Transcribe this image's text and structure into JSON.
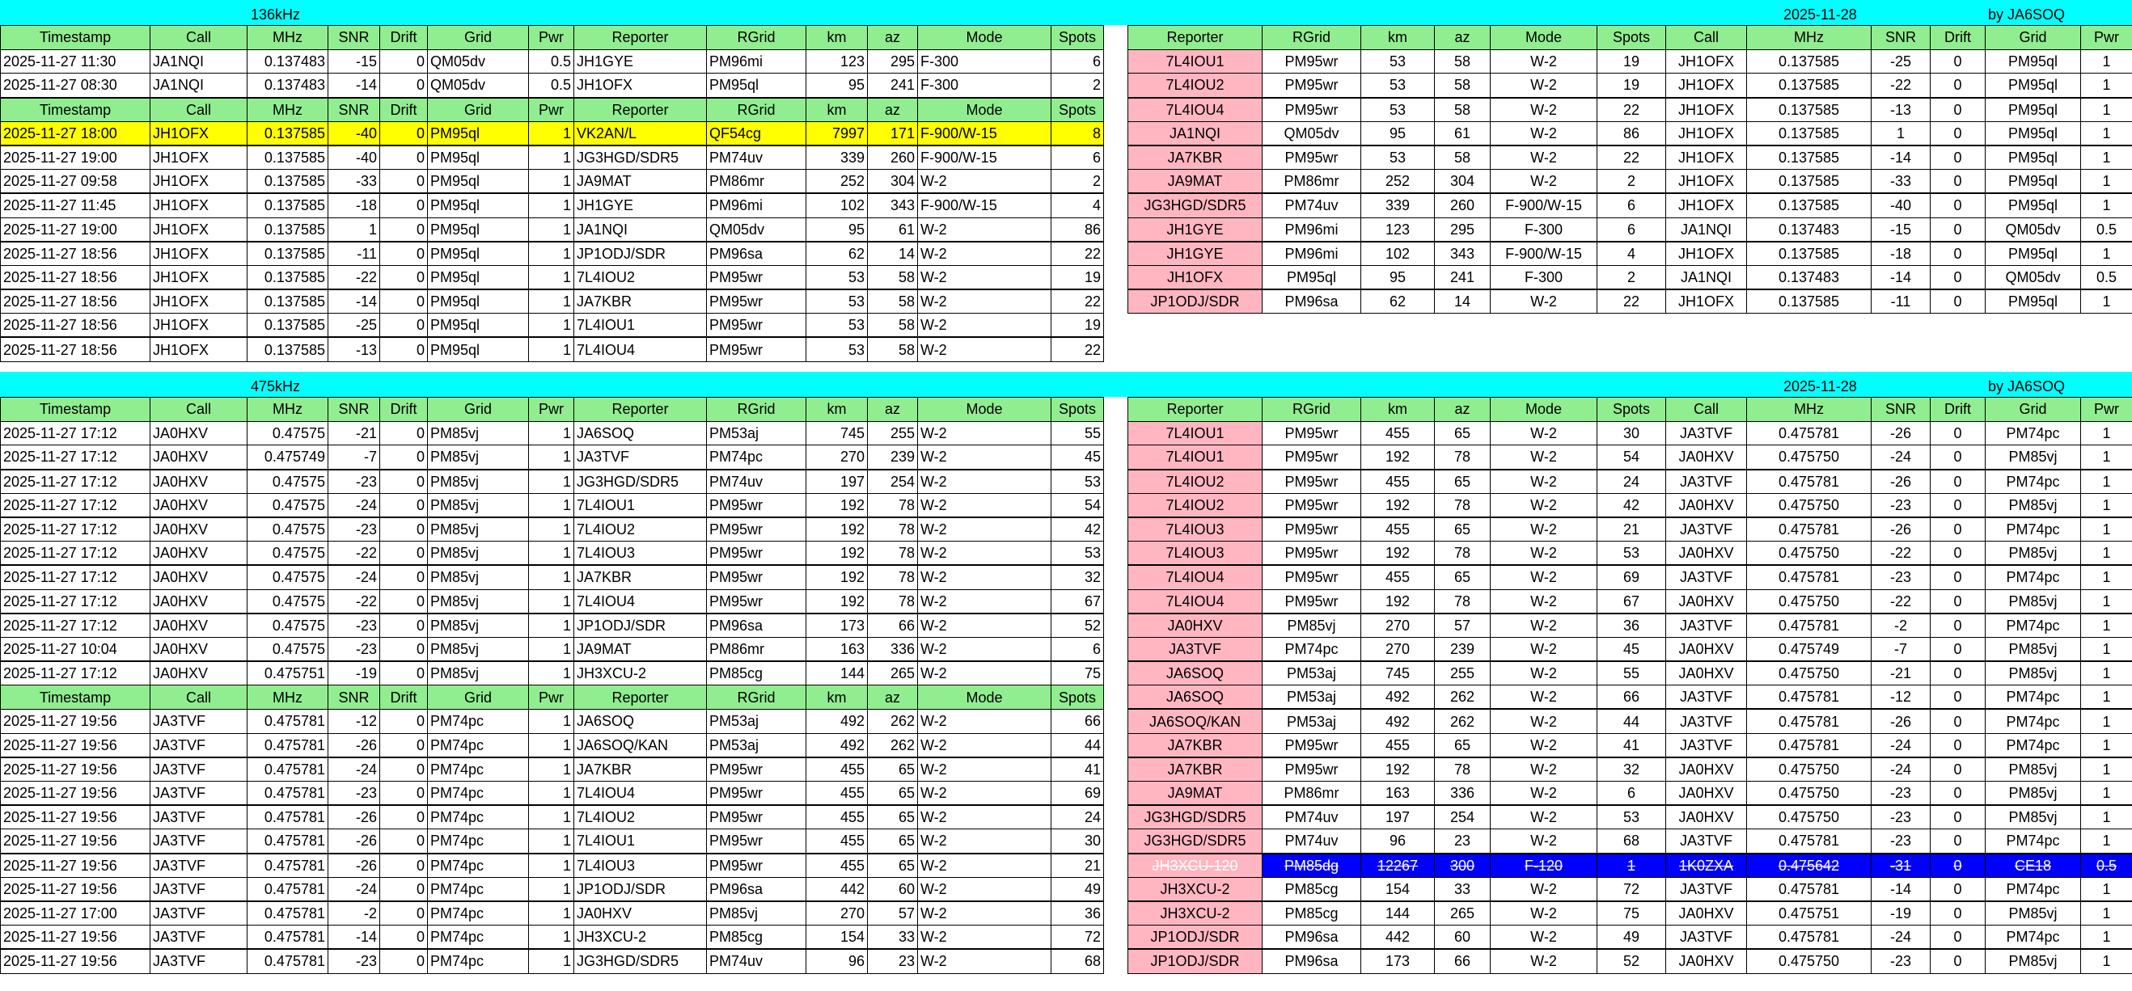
{
  "colors": {
    "band": "#00ffff",
    "header": "#90ee90",
    "reporter_cell": "#ffb6c1",
    "highlight_row": "#ffff00",
    "struck_row": "#0000ff"
  },
  "left": {
    "headers": [
      "Timestamp",
      "Call",
      "MHz",
      "SNR",
      "Drift",
      "Grid",
      "Pwr",
      "Reporter",
      "RGrid",
      "km",
      "az",
      "Mode",
      "Spots"
    ],
    "band_136": {
      "label": "136kHz"
    },
    "band_475": {
      "label": "475kHz"
    },
    "top_groups": [
      {
        "rows": [
          [
            "2025-11-27 11:30",
            "JA1NQI",
            "0.137483",
            "-15",
            "0",
            "QM05dv",
            "0.5",
            "JH1GYE",
            "PM96mi",
            "123",
            "295",
            "F-300",
            "6"
          ],
          [
            "2025-11-27 08:30",
            "JA1NQI",
            "0.137483",
            "-14",
            "0",
            "QM05dv",
            "0.5",
            "JH1OFX",
            "PM95ql",
            "95",
            "241",
            "F-300",
            "2"
          ]
        ]
      },
      {
        "highlight_first_row": true,
        "rows": [
          [
            "2025-11-27 18:00",
            "JH1OFX",
            "0.137585",
            "-40",
            "0",
            "PM95ql",
            "1",
            "VK2AN/L",
            "QF54cg",
            "7997",
            "171",
            "F-900/W-15",
            "8"
          ],
          [
            "2025-11-27 19:00",
            "JH1OFX",
            "0.137585",
            "-40",
            "0",
            "PM95ql",
            "1",
            "JG3HGD/SDR5",
            "PM74uv",
            "339",
            "260",
            "F-900/W-15",
            "6"
          ],
          [
            "2025-11-27 09:58",
            "JH1OFX",
            "0.137585",
            "-33",
            "0",
            "PM95ql",
            "1",
            "JA9MAT",
            "PM86mr",
            "252",
            "304",
            "W-2",
            "2"
          ],
          [
            "2025-11-27 11:45",
            "JH1OFX",
            "0.137585",
            "-18",
            "0",
            "PM95ql",
            "1",
            "JH1GYE",
            "PM96mi",
            "102",
            "343",
            "F-900/W-15",
            "4"
          ],
          [
            "2025-11-27 19:00",
            "JH1OFX",
            "0.137585",
            "1",
            "0",
            "PM95ql",
            "1",
            "JA1NQI",
            "QM05dv",
            "95",
            "61",
            "W-2",
            "86"
          ],
          [
            "2025-11-27 18:56",
            "JH1OFX",
            "0.137585",
            "-11",
            "0",
            "PM95ql",
            "1",
            "JP1ODJ/SDR",
            "PM96sa",
            "62",
            "14",
            "W-2",
            "22"
          ],
          [
            "2025-11-27 18:56",
            "JH1OFX",
            "0.137585",
            "-22",
            "0",
            "PM95ql",
            "1",
            "7L4IOU2",
            "PM95wr",
            "53",
            "58",
            "W-2",
            "19"
          ],
          [
            "2025-11-27 18:56",
            "JH1OFX",
            "0.137585",
            "-14",
            "0",
            "PM95ql",
            "1",
            "JA7KBR",
            "PM95wr",
            "53",
            "58",
            "W-2",
            "22"
          ],
          [
            "2025-11-27 18:56",
            "JH1OFX",
            "0.137585",
            "-25",
            "0",
            "PM95ql",
            "1",
            "7L4IOU1",
            "PM95wr",
            "53",
            "58",
            "W-2",
            "19"
          ],
          [
            "2025-11-27 18:56",
            "JH1OFX",
            "0.137585",
            "-13",
            "0",
            "PM95ql",
            "1",
            "7L4IOU4",
            "PM95wr",
            "53",
            "58",
            "W-2",
            "22"
          ]
        ]
      }
    ],
    "bottom_groups": [
      {
        "rows": [
          [
            "2025-11-27 17:12",
            "JA0HXV",
            "0.47575",
            "-21",
            "0",
            "PM85vj",
            "1",
            "JA6SOQ",
            "PM53aj",
            "745",
            "255",
            "W-2",
            "55"
          ],
          [
            "2025-11-27 17:12",
            "JA0HXV",
            "0.475749",
            "-7",
            "0",
            "PM85vj",
            "1",
            "JA3TVF",
            "PM74pc",
            "270",
            "239",
            "W-2",
            "45"
          ],
          [
            "2025-11-27 17:12",
            "JA0HXV",
            "0.47575",
            "-23",
            "0",
            "PM85vj",
            "1",
            "JG3HGD/SDR5",
            "PM74uv",
            "197",
            "254",
            "W-2",
            "53"
          ],
          [
            "2025-11-27 17:12",
            "JA0HXV",
            "0.47575",
            "-24",
            "0",
            "PM85vj",
            "1",
            "7L4IOU1",
            "PM95wr",
            "192",
            "78",
            "W-2",
            "54"
          ],
          [
            "2025-11-27 17:12",
            "JA0HXV",
            "0.47575",
            "-23",
            "0",
            "PM85vj",
            "1",
            "7L4IOU2",
            "PM95wr",
            "192",
            "78",
            "W-2",
            "42"
          ],
          [
            "2025-11-27 17:12",
            "JA0HXV",
            "0.47575",
            "-22",
            "0",
            "PM85vj",
            "1",
            "7L4IOU3",
            "PM95wr",
            "192",
            "78",
            "W-2",
            "53"
          ],
          [
            "2025-11-27 17:12",
            "JA0HXV",
            "0.47575",
            "-24",
            "0",
            "PM85vj",
            "1",
            "JA7KBR",
            "PM95wr",
            "192",
            "78",
            "W-2",
            "32"
          ],
          [
            "2025-11-27 17:12",
            "JA0HXV",
            "0.47575",
            "-22",
            "0",
            "PM85vj",
            "1",
            "7L4IOU4",
            "PM95wr",
            "192",
            "78",
            "W-2",
            "67"
          ],
          [
            "2025-11-27 17:12",
            "JA0HXV",
            "0.47575",
            "-23",
            "0",
            "PM85vj",
            "1",
            "JP1ODJ/SDR",
            "PM96sa",
            "173",
            "66",
            "W-2",
            "52"
          ],
          [
            "2025-11-27 10:04",
            "JA0HXV",
            "0.47575",
            "-23",
            "0",
            "PM85vj",
            "1",
            "JA9MAT",
            "PM86mr",
            "163",
            "336",
            "W-2",
            "6"
          ],
          [
            "2025-11-27 17:12",
            "JA0HXV",
            "0.475751",
            "-19",
            "0",
            "PM85vj",
            "1",
            "JH3XCU-2",
            "PM85cg",
            "144",
            "265",
            "W-2",
            "75"
          ]
        ]
      },
      {
        "rows": [
          [
            "2025-11-27 19:56",
            "JA3TVF",
            "0.475781",
            "-12",
            "0",
            "PM74pc",
            "1",
            "JA6SOQ",
            "PM53aj",
            "492",
            "262",
            "W-2",
            "66"
          ],
          [
            "2025-11-27 19:56",
            "JA3TVF",
            "0.475781",
            "-26",
            "0",
            "PM74pc",
            "1",
            "JA6SOQ/KAN",
            "PM53aj",
            "492",
            "262",
            "W-2",
            "44"
          ],
          [
            "2025-11-27 19:56",
            "JA3TVF",
            "0.475781",
            "-24",
            "0",
            "PM74pc",
            "1",
            "JA7KBR",
            "PM95wr",
            "455",
            "65",
            "W-2",
            "41"
          ],
          [
            "2025-11-27 19:56",
            "JA3TVF",
            "0.475781",
            "-23",
            "0",
            "PM74pc",
            "1",
            "7L4IOU4",
            "PM95wr",
            "455",
            "65",
            "W-2",
            "69"
          ],
          [
            "2025-11-27 19:56",
            "JA3TVF",
            "0.475781",
            "-26",
            "0",
            "PM74pc",
            "1",
            "7L4IOU2",
            "PM95wr",
            "455",
            "65",
            "W-2",
            "24"
          ],
          [
            "2025-11-27 19:56",
            "JA3TVF",
            "0.475781",
            "-26",
            "0",
            "PM74pc",
            "1",
            "7L4IOU1",
            "PM95wr",
            "455",
            "65",
            "W-2",
            "30"
          ],
          [
            "2025-11-27 19:56",
            "JA3TVF",
            "0.475781",
            "-26",
            "0",
            "PM74pc",
            "1",
            "7L4IOU3",
            "PM95wr",
            "455",
            "65",
            "W-2",
            "21"
          ],
          [
            "2025-11-27 19:56",
            "JA3TVF",
            "0.475781",
            "-24",
            "0",
            "PM74pc",
            "1",
            "JP1ODJ/SDR",
            "PM96sa",
            "442",
            "60",
            "W-2",
            "49"
          ],
          [
            "2025-11-27 17:00",
            "JA3TVF",
            "0.475781",
            "-2",
            "0",
            "PM74pc",
            "1",
            "JA0HXV",
            "PM85vj",
            "270",
            "57",
            "W-2",
            "36"
          ],
          [
            "2025-11-27 19:56",
            "JA3TVF",
            "0.475781",
            "-14",
            "0",
            "PM74pc",
            "1",
            "JH3XCU-2",
            "PM85cg",
            "154",
            "33",
            "W-2",
            "72"
          ],
          [
            "2025-11-27 19:56",
            "JA3TVF",
            "0.475781",
            "-23",
            "0",
            "PM74pc",
            "1",
            "JG3HGD/SDR5",
            "PM74uv",
            "96",
            "23",
            "W-2",
            "68"
          ]
        ]
      }
    ]
  },
  "right": {
    "headers": [
      "Reporter",
      "RGrid",
      "km",
      "az",
      "Mode",
      "Spots",
      "Call",
      "MHz",
      "SNR",
      "Drift",
      "Grid",
      "Pwr"
    ],
    "top_band": {
      "date": "2025-11-28",
      "author": "by JA6SOQ"
    },
    "bottom_band": {
      "date": "2025-11-28",
      "author": "by JA6SOQ"
    },
    "top_rows": [
      [
        "7L4IOU1",
        "PM95wr",
        "53",
        "58",
        "W-2",
        "19",
        "JH1OFX",
        "0.137585",
        "-25",
        "0",
        "PM95ql",
        "1"
      ],
      [
        "7L4IOU2",
        "PM95wr",
        "53",
        "58",
        "W-2",
        "19",
        "JH1OFX",
        "0.137585",
        "-22",
        "0",
        "PM95ql",
        "1"
      ],
      [
        "7L4IOU4",
        "PM95wr",
        "53",
        "58",
        "W-2",
        "22",
        "JH1OFX",
        "0.137585",
        "-13",
        "0",
        "PM95ql",
        "1"
      ],
      [
        "JA1NQI",
        "QM05dv",
        "95",
        "61",
        "W-2",
        "86",
        "JH1OFX",
        "0.137585",
        "1",
        "0",
        "PM95ql",
        "1"
      ],
      [
        "JA7KBR",
        "PM95wr",
        "53",
        "58",
        "W-2",
        "22",
        "JH1OFX",
        "0.137585",
        "-14",
        "0",
        "PM95ql",
        "1"
      ],
      [
        "JA9MAT",
        "PM86mr",
        "252",
        "304",
        "W-2",
        "2",
        "JH1OFX",
        "0.137585",
        "-33",
        "0",
        "PM95ql",
        "1"
      ],
      [
        "JG3HGD/SDR5",
        "PM74uv",
        "339",
        "260",
        "F-900/W-15",
        "6",
        "JH1OFX",
        "0.137585",
        "-40",
        "0",
        "PM95ql",
        "1"
      ],
      [
        "JH1GYE",
        "PM96mi",
        "123",
        "295",
        "F-300",
        "6",
        "JA1NQI",
        "0.137483",
        "-15",
        "0",
        "QM05dv",
        "0.5"
      ],
      [
        "JH1GYE",
        "PM96mi",
        "102",
        "343",
        "F-900/W-15",
        "4",
        "JH1OFX",
        "0.137585",
        "-18",
        "0",
        "PM95ql",
        "1"
      ],
      [
        "JH1OFX",
        "PM95ql",
        "95",
        "241",
        "F-300",
        "2",
        "JA1NQI",
        "0.137483",
        "-14",
        "0",
        "QM05dv",
        "0.5"
      ],
      [
        "JP1ODJ/SDR",
        "PM96sa",
        "62",
        "14",
        "W-2",
        "22",
        "JH1OFX",
        "0.137585",
        "-11",
        "0",
        "PM95ql",
        "1"
      ]
    ],
    "bottom_struck_row_index": 18,
    "bottom_rows": [
      [
        "7L4IOU1",
        "PM95wr",
        "455",
        "65",
        "W-2",
        "30",
        "JA3TVF",
        "0.475781",
        "-26",
        "0",
        "PM74pc",
        "1"
      ],
      [
        "7L4IOU1",
        "PM95wr",
        "192",
        "78",
        "W-2",
        "54",
        "JA0HXV",
        "0.475750",
        "-24",
        "0",
        "PM85vj",
        "1"
      ],
      [
        "7L4IOU2",
        "PM95wr",
        "455",
        "65",
        "W-2",
        "24",
        "JA3TVF",
        "0.475781",
        "-26",
        "0",
        "PM74pc",
        "1"
      ],
      [
        "7L4IOU2",
        "PM95wr",
        "192",
        "78",
        "W-2",
        "42",
        "JA0HXV",
        "0.475750",
        "-23",
        "0",
        "PM85vj",
        "1"
      ],
      [
        "7L4IOU3",
        "PM95wr",
        "455",
        "65",
        "W-2",
        "21",
        "JA3TVF",
        "0.475781",
        "-26",
        "0",
        "PM74pc",
        "1"
      ],
      [
        "7L4IOU3",
        "PM95wr",
        "192",
        "78",
        "W-2",
        "53",
        "JA0HXV",
        "0.475750",
        "-22",
        "0",
        "PM85vj",
        "1"
      ],
      [
        "7L4IOU4",
        "PM95wr",
        "455",
        "65",
        "W-2",
        "69",
        "JA3TVF",
        "0.475781",
        "-23",
        "0",
        "PM74pc",
        "1"
      ],
      [
        "7L4IOU4",
        "PM95wr",
        "192",
        "78",
        "W-2",
        "67",
        "JA0HXV",
        "0.475750",
        "-22",
        "0",
        "PM85vj",
        "1"
      ],
      [
        "JA0HXV",
        "PM85vj",
        "270",
        "57",
        "W-2",
        "36",
        "JA3TVF",
        "0.475781",
        "-2",
        "0",
        "PM74pc",
        "1"
      ],
      [
        "JA3TVF",
        "PM74pc",
        "270",
        "239",
        "W-2",
        "45",
        "JA0HXV",
        "0.475749",
        "-7",
        "0",
        "PM85vj",
        "1"
      ],
      [
        "JA6SOQ",
        "PM53aj",
        "745",
        "255",
        "W-2",
        "55",
        "JA0HXV",
        "0.475750",
        "-21",
        "0",
        "PM85vj",
        "1"
      ],
      [
        "JA6SOQ",
        "PM53aj",
        "492",
        "262",
        "W-2",
        "66",
        "JA3TVF",
        "0.475781",
        "-12",
        "0",
        "PM74pc",
        "1"
      ],
      [
        "JA6SOQ/KAN",
        "PM53aj",
        "492",
        "262",
        "W-2",
        "44",
        "JA3TVF",
        "0.475781",
        "-26",
        "0",
        "PM74pc",
        "1"
      ],
      [
        "JA7KBR",
        "PM95wr",
        "455",
        "65",
        "W-2",
        "41",
        "JA3TVF",
        "0.475781",
        "-24",
        "0",
        "PM74pc",
        "1"
      ],
      [
        "JA7KBR",
        "PM95wr",
        "192",
        "78",
        "W-2",
        "32",
        "JA0HXV",
        "0.475750",
        "-24",
        "0",
        "PM85vj",
        "1"
      ],
      [
        "JA9MAT",
        "PM86mr",
        "163",
        "336",
        "W-2",
        "6",
        "JA0HXV",
        "0.475750",
        "-23",
        "0",
        "PM85vj",
        "1"
      ],
      [
        "JG3HGD/SDR5",
        "PM74uv",
        "197",
        "254",
        "W-2",
        "53",
        "JA0HXV",
        "0.475750",
        "-23",
        "0",
        "PM85vj",
        "1"
      ],
      [
        "JG3HGD/SDR5",
        "PM74uv",
        "96",
        "23",
        "W-2",
        "68",
        "JA3TVF",
        "0.475781",
        "-23",
        "0",
        "PM74pc",
        "1"
      ],
      [
        "JH3XCU-120",
        "PM85dg",
        "12267",
        "300",
        "F-120",
        "1",
        "1K0ZXA",
        "0.475642",
        "-31",
        "0",
        "CE18",
        "0.5"
      ],
      [
        "JH3XCU-2",
        "PM85cg",
        "154",
        "33",
        "W-2",
        "72",
        "JA3TVF",
        "0.475781",
        "-14",
        "0",
        "PM74pc",
        "1"
      ],
      [
        "JH3XCU-2",
        "PM85cg",
        "144",
        "265",
        "W-2",
        "75",
        "JA0HXV",
        "0.475751",
        "-19",
        "0",
        "PM85vj",
        "1"
      ],
      [
        "JP1ODJ/SDR",
        "PM96sa",
        "442",
        "60",
        "W-2",
        "49",
        "JA3TVF",
        "0.475781",
        "-24",
        "0",
        "PM74pc",
        "1"
      ],
      [
        "JP1ODJ/SDR",
        "PM96sa",
        "173",
        "66",
        "W-2",
        "52",
        "JA0HXV",
        "0.475750",
        "-23",
        "0",
        "PM85vj",
        "1"
      ]
    ]
  }
}
